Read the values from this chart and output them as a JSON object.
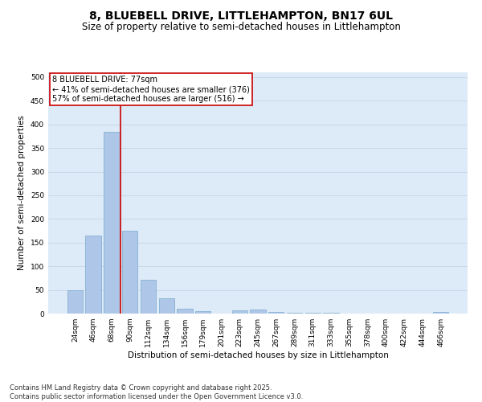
{
  "title": "8, BLUEBELL DRIVE, LITTLEHAMPTON, BN17 6UL",
  "subtitle": "Size of property relative to semi-detached houses in Littlehampton",
  "xlabel": "Distribution of semi-detached houses by size in Littlehampton",
  "ylabel": "Number of semi-detached properties",
  "categories": [
    "24sqm",
    "46sqm",
    "68sqm",
    "90sqm",
    "112sqm",
    "134sqm",
    "156sqm",
    "179sqm",
    "201sqm",
    "223sqm",
    "245sqm",
    "267sqm",
    "289sqm",
    "311sqm",
    "333sqm",
    "355sqm",
    "378sqm",
    "400sqm",
    "422sqm",
    "444sqm",
    "466sqm"
  ],
  "values": [
    50,
    165,
    385,
    175,
    72,
    32,
    10,
    5,
    0,
    7,
    8,
    4,
    2,
    1,
    1,
    0,
    0,
    0,
    0,
    0,
    3
  ],
  "bar_color": "#aec6e8",
  "bar_edge_color": "#7aaacf",
  "red_line_x": 2.5,
  "annotation_text_line1": "8 BLUEBELL DRIVE: 77sqm",
  "annotation_text_line2": "← 41% of semi-detached houses are smaller (376)",
  "annotation_text_line3": "57% of semi-detached houses are larger (516) →",
  "ylim": [
    0,
    510
  ],
  "yticks": [
    0,
    50,
    100,
    150,
    200,
    250,
    300,
    350,
    400,
    450,
    500
  ],
  "grid_color": "#c8d8e8",
  "background_color": "#ddeaf7",
  "footer_line1": "Contains HM Land Registry data © Crown copyright and database right 2025.",
  "footer_line2": "Contains public sector information licensed under the Open Government Licence v3.0.",
  "title_fontsize": 10,
  "subtitle_fontsize": 8.5,
  "axis_label_fontsize": 7.5,
  "tick_fontsize": 6.5,
  "annotation_fontsize": 7,
  "footer_fontsize": 6,
  "red_line_color": "#cc0000",
  "annotation_box_edge_color": "#cc0000",
  "annotation_box_face_color": "#ffffff"
}
